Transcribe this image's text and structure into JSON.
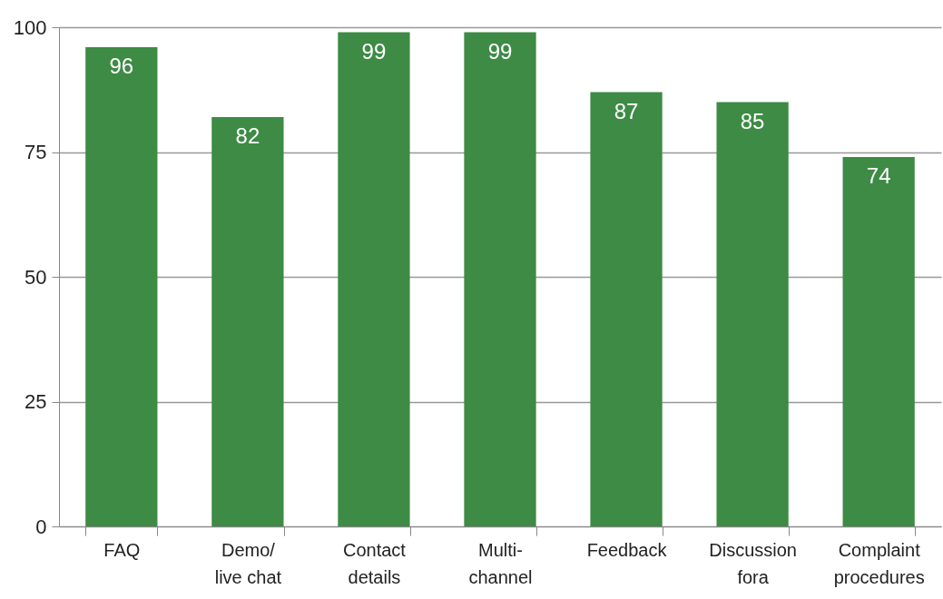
{
  "chart_data": {
    "type": "bar",
    "categories": [
      "FAQ",
      "Demo/live chat",
      "Contact details",
      "Multi-channel",
      "Feedback",
      "Discussion fora",
      "Complaint procedures"
    ],
    "values": [
      96,
      82,
      99,
      99,
      87,
      85,
      74
    ],
    "color": "#3d8b45",
    "ylim": [
      0,
      100
    ],
    "yticks": [
      0,
      25,
      50,
      75,
      100
    ],
    "grid": "y",
    "data_labels": true
  }
}
